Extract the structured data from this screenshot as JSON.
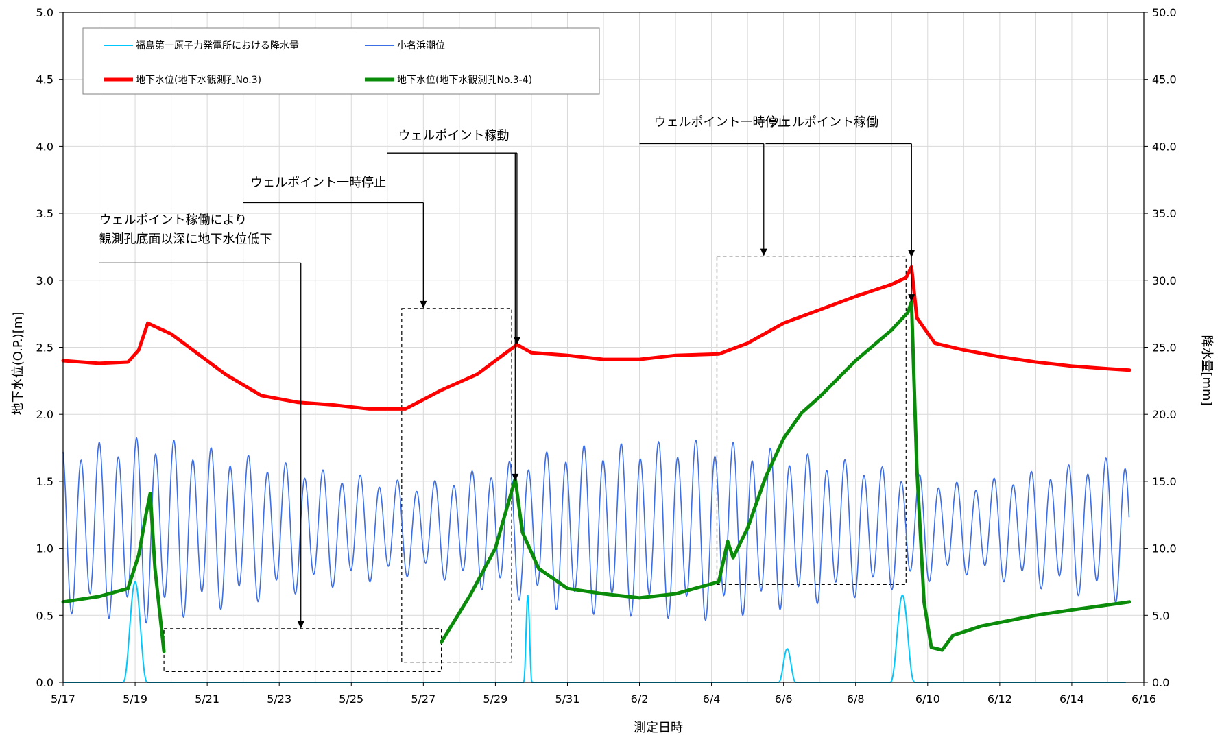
{
  "chart_data": {
    "type": "line",
    "xlabel": "測定日時",
    "ylabel_left": "地下水位(O.P.)[m]",
    "ylabel_right": "降水量[mm]",
    "y_left_range": [
      0.0,
      5.0
    ],
    "y_right_range": [
      0.0,
      50.0
    ],
    "x_range": [
      "5/17",
      "6/16"
    ],
    "x_ticks": [
      "5/17",
      "5/19",
      "5/21",
      "5/23",
      "5/25",
      "5/27",
      "5/29",
      "5/31",
      "6/2",
      "6/4",
      "6/6",
      "6/8",
      "6/10",
      "6/12",
      "6/14",
      "6/16"
    ],
    "y_left_ticks": [
      "0.0",
      "0.5",
      "1.0",
      "1.5",
      "2.0",
      "2.5",
      "3.0",
      "3.5",
      "4.0",
      "4.5",
      "5.0"
    ],
    "y_right_ticks": [
      "0.0",
      "5.0",
      "10.0",
      "15.0",
      "20.0",
      "25.0",
      "30.0",
      "35.0",
      "40.0",
      "45.0",
      "50.0"
    ],
    "grid": true,
    "legend_position": "top-left",
    "colors": {
      "rain": "#00c8ff",
      "tide": "#3c6ee6",
      "well3": "#ff0000",
      "well34": "#0a8c0a"
    },
    "series": [
      {
        "name": "福島第一原子力発電所における降水量",
        "axis": "right",
        "color": "#00c8ff",
        "events": [
          {
            "center": [
              5,
              19.0
            ],
            "peak": 7.5,
            "halfwidth_days": 0.35
          },
          {
            "center": [
              5,
              29.9
            ],
            "peak": 6.5,
            "halfwidth_days": 0.12
          },
          {
            "center": [
              6,
              6.1
            ],
            "peak": 2.5,
            "halfwidth_days": 0.25
          },
          {
            "center": [
              6,
              9.3
            ],
            "peak": 6.5,
            "halfwidth_days": 0.35
          }
        ]
      },
      {
        "name": "小名浜潮位",
        "axis": "left",
        "color": "#3c6ee6",
        "x_start": [
          5,
          17.0
        ],
        "x_end": [
          6,
          15.6
        ],
        "mean": 1.15,
        "amplitude": [
          {
            "x": [
              5,
              17.0
            ],
            "a": 0.55
          },
          {
            "x": [
              5,
              19.5
            ],
            "a": 0.62
          },
          {
            "x": [
              5,
              24.0
            ],
            "a": 0.4
          },
          {
            "x": [
              5,
              27.0
            ],
            "a": 0.3
          },
          {
            "x": [
              5,
              31.0
            ],
            "a": 0.55
          },
          {
            "x": [
              6,
              4.0
            ],
            "a": 0.6
          },
          {
            "x": [
              6,
              8.0
            ],
            "a": 0.45
          },
          {
            "x": [
              6,
              11.0
            ],
            "a": 0.3
          },
          {
            "x": [
              6,
              15.6
            ],
            "a": 0.5
          }
        ]
      },
      {
        "name": "地下水位(地下水観測孔No.3)",
        "axis": "left",
        "color": "#ff0000",
        "points": [
          {
            "x": [
              5,
              17.0
            ],
            "y": 2.4
          },
          {
            "x": [
              5,
              18.0
            ],
            "y": 2.38
          },
          {
            "x": [
              5,
              18.8
            ],
            "y": 2.39
          },
          {
            "x": [
              5,
              19.1
            ],
            "y": 2.48
          },
          {
            "x": [
              5,
              19.35
            ],
            "y": 2.68
          },
          {
            "x": [
              5,
              20.0
            ],
            "y": 2.6
          },
          {
            "x": [
              5,
              20.5
            ],
            "y": 2.5
          },
          {
            "x": [
              5,
              21.5
            ],
            "y": 2.3
          },
          {
            "x": [
              5,
              22.5
            ],
            "y": 2.14
          },
          {
            "x": [
              5,
              23.5
            ],
            "y": 2.09
          },
          {
            "x": [
              5,
              24.5
            ],
            "y": 2.07
          },
          {
            "x": [
              5,
              25.5
            ],
            "y": 2.04
          },
          {
            "x": [
              5,
              26.5
            ],
            "y": 2.04
          },
          {
            "x": [
              5,
              27.5
            ],
            "y": 2.18
          },
          {
            "x": [
              5,
              28.5
            ],
            "y": 2.3
          },
          {
            "x": [
              5,
              29.3
            ],
            "y": 2.46
          },
          {
            "x": [
              5,
              29.6
            ],
            "y": 2.52
          },
          {
            "x": [
              5,
              30.0
            ],
            "y": 2.46
          },
          {
            "x": [
              5,
              31.0
            ],
            "y": 2.44
          },
          {
            "x": [
              6,
              1.0
            ],
            "y": 2.41
          },
          {
            "x": [
              6,
              2.0
            ],
            "y": 2.41
          },
          {
            "x": [
              6,
              3.0
            ],
            "y": 2.44
          },
          {
            "x": [
              6,
              4.2
            ],
            "y": 2.45
          },
          {
            "x": [
              6,
              5.0
            ],
            "y": 2.53
          },
          {
            "x": [
              6,
              6.0
            ],
            "y": 2.68
          },
          {
            "x": [
              6,
              7.0
            ],
            "y": 2.78
          },
          {
            "x": [
              6,
              8.0
            ],
            "y": 2.88
          },
          {
            "x": [
              6,
              9.0
            ],
            "y": 2.97
          },
          {
            "x": [
              6,
              9.4
            ],
            "y": 3.02
          },
          {
            "x": [
              6,
              9.55
            ],
            "y": 3.1
          },
          {
            "x": [
              6,
              9.7
            ],
            "y": 2.72
          },
          {
            "x": [
              6,
              10.2
            ],
            "y": 2.53
          },
          {
            "x": [
              6,
              11.0
            ],
            "y": 2.48
          },
          {
            "x": [
              6,
              12.0
            ],
            "y": 2.43
          },
          {
            "x": [
              6,
              13.0
            ],
            "y": 2.39
          },
          {
            "x": [
              6,
              14.0
            ],
            "y": 2.36
          },
          {
            "x": [
              6,
              15.0
            ],
            "y": 2.34
          },
          {
            "x": [
              6,
              15.6
            ],
            "y": 2.33
          }
        ]
      },
      {
        "name": "地下水位(地下水観測孔No.3-4)",
        "axis": "left",
        "color": "#0a8c0a",
        "segments": [
          [
            {
              "x": [
                5,
                17.0
              ],
              "y": 0.6
            },
            {
              "x": [
                5,
                18.0
              ],
              "y": 0.64
            },
            {
              "x": [
                5,
                18.8
              ],
              "y": 0.7
            },
            {
              "x": [
                5,
                19.1
              ],
              "y": 0.95
            },
            {
              "x": [
                5,
                19.3
              ],
              "y": 1.25
            },
            {
              "x": [
                5,
                19.42
              ],
              "y": 1.41
            },
            {
              "x": [
                5,
                19.55
              ],
              "y": 0.85
            },
            {
              "x": [
                5,
                19.8
              ],
              "y": 0.23
            }
          ],
          [
            {
              "x": [
                5,
                27.5
              ],
              "y": 0.3
            },
            {
              "x": [
                5,
                28.3
              ],
              "y": 0.65
            },
            {
              "x": [
                5,
                29.0
              ],
              "y": 1.0
            },
            {
              "x": [
                5,
                29.55
              ],
              "y": 1.52
            },
            {
              "x": [
                5,
                29.75
              ],
              "y": 1.12
            },
            {
              "x": [
                5,
                30.2
              ],
              "y": 0.85
            },
            {
              "x": [
                5,
                31.0
              ],
              "y": 0.7
            },
            {
              "x": [
                6,
                1.0
              ],
              "y": 0.66
            },
            {
              "x": [
                6,
                2.0
              ],
              "y": 0.63
            },
            {
              "x": [
                6,
                3.0
              ],
              "y": 0.66
            },
            {
              "x": [
                6,
                4.2
              ],
              "y": 0.75
            },
            {
              "x": [
                6,
                4.45
              ],
              "y": 1.05
            },
            {
              "x": [
                6,
                4.6
              ],
              "y": 0.93
            },
            {
              "x": [
                6,
                5.0
              ],
              "y": 1.15
            },
            {
              "x": [
                6,
                5.5
              ],
              "y": 1.53
            },
            {
              "x": [
                6,
                6.0
              ],
              "y": 1.82
            },
            {
              "x": [
                6,
                6.5
              ],
              "y": 2.01
            },
            {
              "x": [
                6,
                7.0
              ],
              "y": 2.13
            },
            {
              "x": [
                6,
                8.0
              ],
              "y": 2.4
            },
            {
              "x": [
                6,
                9.0
              ],
              "y": 2.63
            },
            {
              "x": [
                6,
                9.45
              ],
              "y": 2.76
            },
            {
              "x": [
                6,
                9.55
              ],
              "y": 2.84
            },
            {
              "x": [
                6,
                9.7
              ],
              "y": 1.6
            },
            {
              "x": [
                6,
                9.9
              ],
              "y": 0.6
            },
            {
              "x": [
                6,
                10.1
              ],
              "y": 0.26
            },
            {
              "x": [
                6,
                10.4
              ],
              "y": 0.24
            },
            {
              "x": [
                6,
                10.7
              ],
              "y": 0.35
            },
            {
              "x": [
                6,
                11.5
              ],
              "y": 0.42
            },
            {
              "x": [
                6,
                13.0
              ],
              "y": 0.5
            },
            {
              "x": [
                6,
                14.0
              ],
              "y": 0.54
            },
            {
              "x": [
                6,
                15.6
              ],
              "y": 0.6
            }
          ]
        ]
      }
    ],
    "annotations": [
      {
        "lines": [
          "ウェルポイント稼働により",
          "観測孔底面以深に地下水位低下"
        ],
        "text_x": [
          5,
          18.0
        ],
        "text_y": 3.42,
        "underline_from": [
          5,
          18.0
        ],
        "underline_to": [
          5,
          23.6
        ],
        "underline_y": 3.13,
        "arrow_x": [
          5,
          23.6
        ],
        "arrow_to_y": 0.4
      },
      {
        "lines": [
          "ウェルポイント一時停止"
        ],
        "text_x": [
          5,
          22.2
        ],
        "text_y": 3.7,
        "underline_from": [
          5,
          22.0
        ],
        "underline_to": [
          5,
          27.0
        ],
        "underline_y": 3.58,
        "arrow_x": [
          5,
          27.0
        ],
        "arrow_to_y": 2.79
      },
      {
        "lines": [
          "ウェルポイント稼動"
        ],
        "text_x": [
          5,
          26.3
        ],
        "text_y": 4.05,
        "underline_from": [
          5,
          26.0
        ],
        "underline_to": [
          5,
          29.6
        ],
        "underline_y": 3.95,
        "arrow_x": [
          5,
          29.6
        ],
        "arrow_to_y": 2.52,
        "arrow2_x": [
          5,
          29.55
        ],
        "arrow2_to_y": 1.5
      },
      {
        "lines": [
          "ウェルポイント一時停止"
        ],
        "text_x": [
          6,
          2.4
        ],
        "text_y": 4.15,
        "underline_from": [
          6,
          2.0
        ],
        "underline_to": [
          6,
          5.45
        ],
        "underline_y": 4.02,
        "arrow_x": [
          6,
          5.45
        ],
        "arrow_to_y": 3.18
      },
      {
        "lines": [
          "ウェルポイント稼働"
        ],
        "text_x": [
          6,
          5.55
        ],
        "text_y": 4.15,
        "underline_from": [
          6,
          5.5
        ],
        "underline_to": [
          6,
          9.55
        ],
        "underline_y": 4.02,
        "arrow_x": [
          6,
          9.55
        ],
        "arrow_to_y": 3.17,
        "arrow2_x": [
          6,
          9.55
        ],
        "arrow2_to_y": 2.84
      }
    ],
    "dashed_boxes": [
      {
        "x0": [
          5,
          19.8
        ],
        "x1": [
          5,
          27.5
        ],
        "y0": 0.08,
        "y1": 0.4
      },
      {
        "x0": [
          5,
          26.4
        ],
        "x1": [
          5,
          29.45
        ],
        "y0": 0.15,
        "y1": 2.79
      },
      {
        "x0": [
          6,
          4.15
        ],
        "x1": [
          6,
          9.4
        ],
        "y0": 0.73,
        "y1": 3.18
      }
    ]
  }
}
